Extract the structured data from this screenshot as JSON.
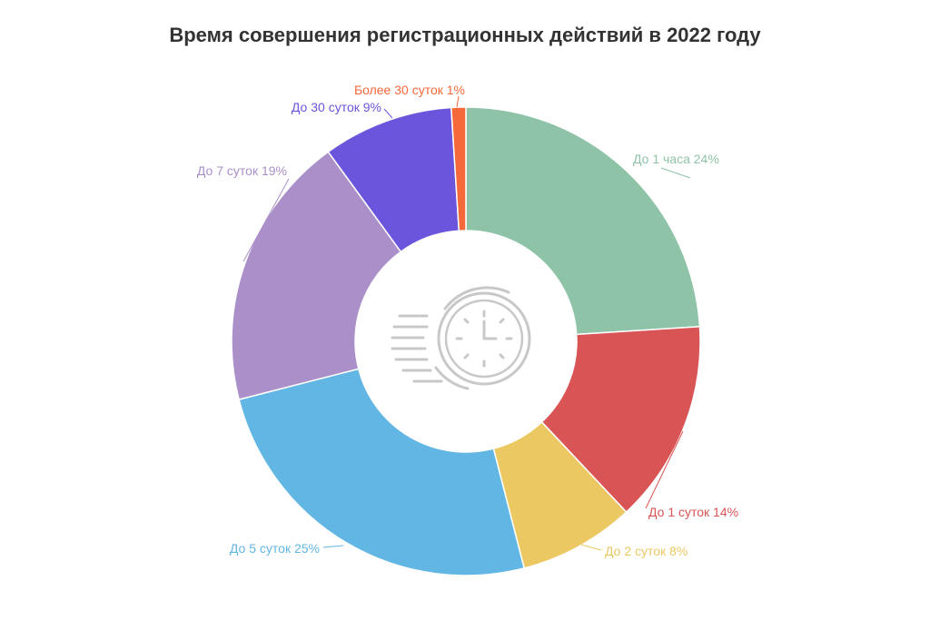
{
  "chart_data": {
    "type": "pie",
    "variant": "donut",
    "title": "Время совершения регистрационных действий в 2022 году",
    "center_icon": "clock-speed-icon",
    "slices": [
      {
        "label": "До 1 часа",
        "value": 24,
        "display": "До 1 часа 24%",
        "color": "#8ec3a8"
      },
      {
        "label": "До 1 суток",
        "value": 14,
        "display": "До 1 суток 14%",
        "color": "#d95455"
      },
      {
        "label": "До 2 суток",
        "value": 8,
        "display": "До 2 суток 8%",
        "color": "#ebc862"
      },
      {
        "label": "До 5 суток",
        "value": 25,
        "display": "До 5 суток 25%",
        "color": "#62b6e4"
      },
      {
        "label": "До 7 суток",
        "value": 19,
        "display": "До 7 суток 19%",
        "color": "#aa8fc8"
      },
      {
        "label": "До 30 суток",
        "value": 9,
        "display": "До 30 суток 9%",
        "color": "#6b55dd"
      },
      {
        "label": "Более 30 суток",
        "value": 1,
        "display": "Более 30 суток 1%",
        "color": "#f4683a"
      }
    ]
  }
}
